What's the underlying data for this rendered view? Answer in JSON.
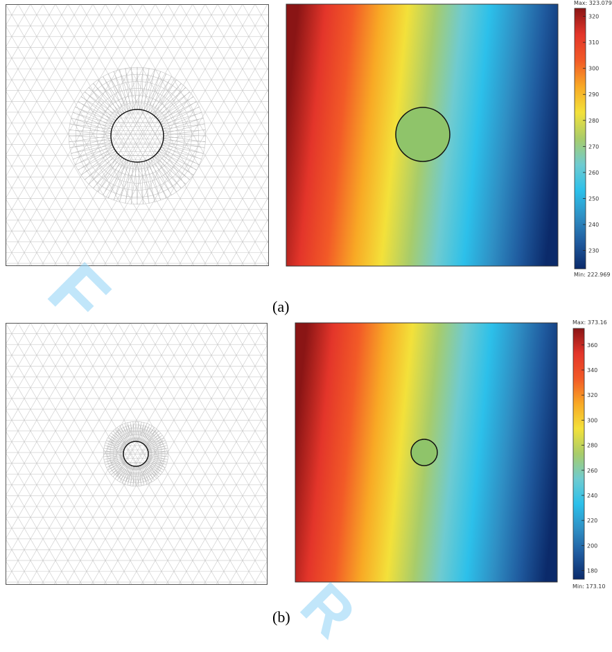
{
  "captions": {
    "a": "(a)",
    "b": "(b)"
  },
  "watermark": [
    "F",
    "R"
  ],
  "colorbar_a": {
    "max_label": "Max: 323.079",
    "min_label": "Min: 222.969",
    "min": 222.969,
    "max": 323.079,
    "ticks": [
      230,
      240,
      250,
      260,
      270,
      280,
      290,
      300,
      310,
      320
    ]
  },
  "colorbar_b": {
    "max_label": "Max: 373.16",
    "min_label": "Min: 173.10",
    "min": 173.1,
    "max": 373.16,
    "ticks": [
      180,
      200,
      220,
      240,
      260,
      280,
      300,
      320,
      340,
      360
    ]
  },
  "colors": {
    "mesh": "#c8c8c8",
    "border": "#555555",
    "circle": "#111111",
    "watermark": "#8fd3f7"
  },
  "colormap": [
    "#0b2a6a",
    "#1f5a9e",
    "#2f8fc4",
    "#2cc0ea",
    "#6fcbd0",
    "#a8cc6a",
    "#f3e13a",
    "#f8a925",
    "#f25a27",
    "#e3352a",
    "#8a1515"
  ]
}
